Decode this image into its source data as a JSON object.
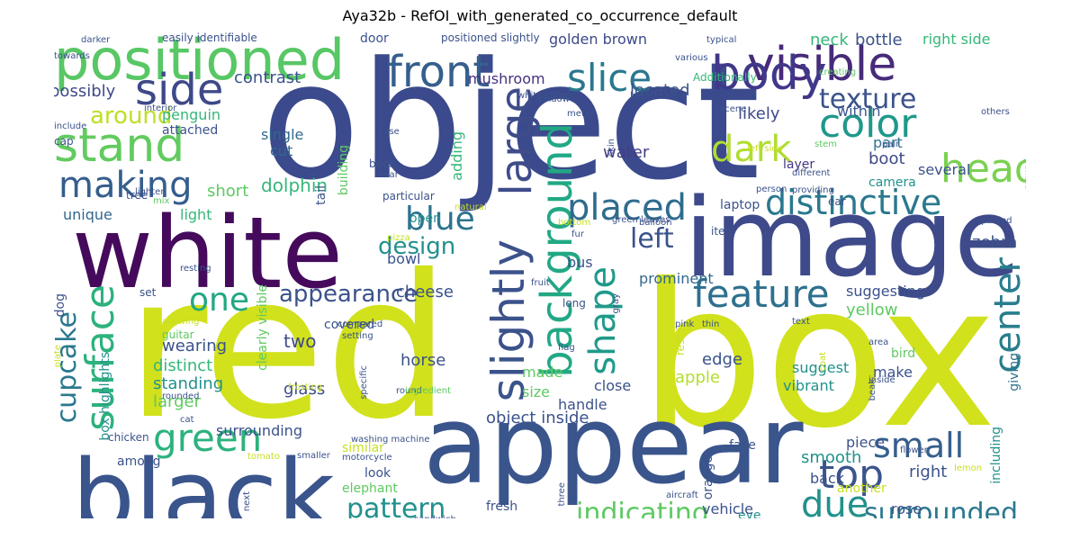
{
  "title": "Aya32b - RefOI_with_generated_co_occurrence_default",
  "words": [
    {
      "text": "object",
      "color": "#3b4a8c"
    },
    {
      "text": "red",
      "color": "#d1e11c"
    },
    {
      "text": "box",
      "color": "#d1e11c"
    },
    {
      "text": "white",
      "color": "#450a5c"
    },
    {
      "text": "image",
      "color": "#3e4a89"
    },
    {
      "text": "appear",
      "color": "#3a558c"
    },
    {
      "text": "black",
      "color": "#3a558c"
    },
    {
      "text": "positioned",
      "color": "#58c765"
    },
    {
      "text": "visible",
      "color": "#472b7a"
    },
    {
      "text": "body",
      "color": "#40388a"
    },
    {
      "text": "front",
      "color": "#355f8d"
    },
    {
      "text": "slice",
      "color": "#2a788e"
    },
    {
      "text": "stand",
      "color": "#62cb5f"
    },
    {
      "text": "side",
      "color": "#3e4989"
    },
    {
      "text": "making",
      "color": "#355e8d"
    },
    {
      "text": "color",
      "color": "#1f988b"
    },
    {
      "text": "head",
      "color": "#7ad151"
    },
    {
      "text": "texture",
      "color": "#3b528b"
    },
    {
      "text": "dark",
      "color": "#b0dd2f"
    },
    {
      "text": "distinctive",
      "color": "#2a788e"
    },
    {
      "text": "background",
      "color": "#22a884"
    },
    {
      "text": "large",
      "color": "#3e4c8a"
    },
    {
      "text": "placed",
      "color": "#2f6c8e"
    },
    {
      "text": "blue",
      "color": "#2c738e"
    },
    {
      "text": "shape",
      "color": "#1f9a8a"
    },
    {
      "text": "slightly",
      "color": "#3b528b"
    },
    {
      "text": "feature",
      "color": "#2d708e"
    },
    {
      "text": "center",
      "color": "#287d8e"
    },
    {
      "text": "surface",
      "color": "#2db27d"
    },
    {
      "text": "one",
      "color": "#22a884"
    },
    {
      "text": "appearance",
      "color": "#3b528b"
    },
    {
      "text": "design",
      "color": "#21908d"
    },
    {
      "text": "left",
      "color": "#3b528b"
    },
    {
      "text": "green",
      "color": "#2db27d"
    },
    {
      "text": "small",
      "color": "#355f8d"
    },
    {
      "text": "top",
      "color": "#3a548c"
    },
    {
      "text": "due",
      "color": "#21918c"
    },
    {
      "text": "pattern",
      "color": "#21918c"
    },
    {
      "text": "indicating",
      "color": "#5ec962"
    },
    {
      "text": "surrounded",
      "color": "#2a788e"
    },
    {
      "text": "cupcake",
      "color": "#2a788e"
    },
    {
      "text": "around",
      "color": "#bddf26"
    },
    {
      "text": "possibly",
      "color": "#3e4a89"
    },
    {
      "text": "contrast",
      "color": "#3b528b"
    },
    {
      "text": "mushroom",
      "color": "#46327e"
    },
    {
      "text": "located",
      "color": "#3b528b"
    },
    {
      "text": "golden brown",
      "color": "#3e4989"
    },
    {
      "text": "neck",
      "color": "#35b779"
    },
    {
      "text": "bottle",
      "color": "#3b528b"
    },
    {
      "text": "right side",
      "color": "#35b779"
    },
    {
      "text": "penguin",
      "color": "#35b779"
    },
    {
      "text": "likely",
      "color": "#3e4a89"
    },
    {
      "text": "within",
      "color": "#39568c"
    },
    {
      "text": "water",
      "color": "#433e85"
    },
    {
      "text": "boot",
      "color": "#3e4a89"
    },
    {
      "text": "part",
      "color": "#2c738e"
    },
    {
      "text": "layer",
      "color": "#443983"
    },
    {
      "text": "camera",
      "color": "#21918c"
    },
    {
      "text": "several",
      "color": "#3b528b"
    },
    {
      "text": "dolphin",
      "color": "#35b779"
    },
    {
      "text": "short",
      "color": "#5ec962"
    },
    {
      "text": "unique",
      "color": "#31688e"
    },
    {
      "text": "light",
      "color": "#35b779"
    },
    {
      "text": "single",
      "color": "#31688e"
    },
    {
      "text": "cut",
      "color": "#31688e"
    },
    {
      "text": "attached",
      "color": "#3b528b"
    },
    {
      "text": "horse",
      "color": "#3b528b"
    },
    {
      "text": "wearing",
      "color": "#3b528b"
    },
    {
      "text": "distinct",
      "color": "#35b779"
    },
    {
      "text": "standing",
      "color": "#21918c"
    },
    {
      "text": "larger",
      "color": "#5ec962"
    },
    {
      "text": "two",
      "color": "#3e4a89"
    },
    {
      "text": "glass",
      "color": "#3e4a89"
    },
    {
      "text": "cheese",
      "color": "#3b528b"
    },
    {
      "text": "bowl",
      "color": "#3b528b"
    },
    {
      "text": "bus",
      "color": "#3b528b"
    },
    {
      "text": "prominent",
      "color": "#31688e"
    },
    {
      "text": "suggesting",
      "color": "#3b528b"
    },
    {
      "text": "yellow",
      "color": "#5ec962"
    },
    {
      "text": "zebra",
      "color": "#3b528b"
    },
    {
      "text": "giving",
      "color": "#2c738e"
    },
    {
      "text": "bird",
      "color": "#5ec962"
    },
    {
      "text": "suggest",
      "color": "#21918c"
    },
    {
      "text": "vibrant",
      "color": "#21918c"
    },
    {
      "text": "edge",
      "color": "#3b528b"
    },
    {
      "text": "make",
      "color": "#3b528b"
    },
    {
      "text": "apple",
      "color": "#b5de2b"
    },
    {
      "text": "made",
      "color": "#5ec962"
    },
    {
      "text": "size",
      "color": "#5ec962"
    },
    {
      "text": "handle",
      "color": "#3b528b"
    },
    {
      "text": "close",
      "color": "#3b528b"
    },
    {
      "text": "object inside",
      "color": "#3b528b"
    },
    {
      "text": "surrounding",
      "color": "#3b528b"
    },
    {
      "text": "similar",
      "color": "#c8e020"
    },
    {
      "text": "piece",
      "color": "#3b528b"
    },
    {
      "text": "smooth",
      "color": "#21918c"
    },
    {
      "text": "back",
      "color": "#3b528b"
    },
    {
      "text": "right",
      "color": "#3b528b"
    },
    {
      "text": "including",
      "color": "#21918c"
    },
    {
      "text": "orange",
      "color": "#3b528b"
    },
    {
      "text": "face",
      "color": "#3b528b"
    },
    {
      "text": "eye",
      "color": "#21918c"
    },
    {
      "text": "fresh",
      "color": "#3b528b"
    },
    {
      "text": "elephant",
      "color": "#5ec962"
    },
    {
      "text": "look",
      "color": "#3b528b"
    },
    {
      "text": "another",
      "color": "#c8e020"
    },
    {
      "text": "rose",
      "color": "#3b528b"
    },
    {
      "text": "structure",
      "color": "#21918c"
    },
    {
      "text": "vehicle",
      "color": "#3b528b"
    },
    {
      "text": "among",
      "color": "#3b528b"
    },
    {
      "text": "box highlights",
      "color": "#21918c"
    },
    {
      "text": "building",
      "color": "#5ec962"
    },
    {
      "text": "adding",
      "color": "#35b779"
    },
    {
      "text": "tail",
      "color": "#3b528b"
    },
    {
      "text": "open",
      "color": "#21918c"
    },
    {
      "text": "dog",
      "color": "#3b528b"
    },
    {
      "text": "clearly visible",
      "color": "#5ec962"
    },
    {
      "text": "door",
      "color": "#3b528b"
    },
    {
      "text": "positioned slightly",
      "color": "#3b528b"
    },
    {
      "text": "easily identifiable",
      "color": "#3b528b"
    },
    {
      "text": "darker",
      "color": "#3b528b"
    },
    {
      "text": "towards",
      "color": "#3b528b"
    },
    {
      "text": "typical",
      "color": "#3b528b"
    },
    {
      "text": "various",
      "color": "#3b528b"
    },
    {
      "text": "creating",
      "color": "#5ec962"
    },
    {
      "text": "Additionally",
      "color": "#35b779"
    },
    {
      "text": "leg",
      "color": "#3b528b"
    },
    {
      "text": "window",
      "color": "#3b528b"
    },
    {
      "text": "white stripe",
      "color": "#3b528b"
    },
    {
      "text": "metal",
      "color": "#3b528b"
    },
    {
      "text": "scene",
      "color": "#3b528b"
    },
    {
      "text": "others",
      "color": "#3b528b"
    },
    {
      "text": "interior",
      "color": "#3b528b"
    },
    {
      "text": "include",
      "color": "#3b528b"
    },
    {
      "text": "cap",
      "color": "#3b528b"
    },
    {
      "text": "base",
      "color": "#3b528b"
    },
    {
      "text": "skin",
      "color": "#3b528b"
    },
    {
      "text": "left side",
      "color": "#c8e020"
    },
    {
      "text": "stem",
      "color": "#5ec962"
    },
    {
      "text": "pair",
      "color": "#3b528b"
    },
    {
      "text": "different",
      "color": "#3b528b"
    },
    {
      "text": "ear",
      "color": "#3b528b"
    },
    {
      "text": "providing",
      "color": "#3b528b"
    },
    {
      "text": "ground",
      "color": "#5ec962"
    },
    {
      "text": "overall",
      "color": "#3b528b"
    },
    {
      "text": "tree",
      "color": "#3b528b"
    },
    {
      "text": "lighter",
      "color": "#3b528b"
    },
    {
      "text": "mix",
      "color": "#5ec962"
    },
    {
      "text": "book",
      "color": "#3b528b"
    },
    {
      "text": "near",
      "color": "#3b528b"
    },
    {
      "text": "particular",
      "color": "#3b528b"
    },
    {
      "text": "person",
      "color": "#3b528b"
    },
    {
      "text": "laptop",
      "color": "#3b528b"
    },
    {
      "text": "natural",
      "color": "#c8e020"
    },
    {
      "text": "bottom",
      "color": "#c8e020"
    },
    {
      "text": "green leaves",
      "color": "#3b528b"
    },
    {
      "text": "balloon",
      "color": "#3b528b"
    },
    {
      "text": "fur",
      "color": "#3b528b"
    },
    {
      "text": "item",
      "color": "#3b528b"
    },
    {
      "text": "parked",
      "color": "#3b528b"
    },
    {
      "text": "pizza",
      "color": "#c8e020"
    },
    {
      "text": "set",
      "color": "#3b528b"
    },
    {
      "text": "resting",
      "color": "#3b528b"
    },
    {
      "text": "fruit",
      "color": "#3b528b"
    },
    {
      "text": "gray",
      "color": "#3b528b"
    },
    {
      "text": "pink",
      "color": "#3b528b"
    },
    {
      "text": "long",
      "color": "#3b528b"
    },
    {
      "text": "covered",
      "color": "#3b528b"
    },
    {
      "text": "setting",
      "color": "#3b528b"
    },
    {
      "text": "allowing",
      "color": "#c8e020"
    },
    {
      "text": "compared",
      "color": "#3b528b"
    },
    {
      "text": "thin",
      "color": "#3b528b"
    },
    {
      "text": "coat",
      "color": "#c8e020"
    },
    {
      "text": "text",
      "color": "#3b528b"
    },
    {
      "text": "area",
      "color": "#3b528b"
    },
    {
      "text": "guitar",
      "color": "#5ec962"
    },
    {
      "text": "plate",
      "color": "#c8e020"
    },
    {
      "text": "flag",
      "color": "#3b528b"
    },
    {
      "text": "rest",
      "color": "#c8e020"
    },
    {
      "text": "frosting",
      "color": "#c8e020"
    },
    {
      "text": "round",
      "color": "#3b528b"
    },
    {
      "text": "ingredient",
      "color": "#5ec962"
    },
    {
      "text": "specific",
      "color": "#3b528b"
    },
    {
      "text": "inside",
      "color": "#3b528b"
    },
    {
      "text": "beak",
      "color": "#3b528b"
    },
    {
      "text": "rounded",
      "color": "#3b528b"
    },
    {
      "text": "cat",
      "color": "#3b528b"
    },
    {
      "text": "chicken",
      "color": "#3b528b"
    },
    {
      "text": "washing machine",
      "color": "#3b528b"
    },
    {
      "text": "tomato",
      "color": "#c8e020"
    },
    {
      "text": "smaller",
      "color": "#3b528b"
    },
    {
      "text": "motorcycle",
      "color": "#3b528b"
    },
    {
      "text": "three",
      "color": "#3b528b"
    },
    {
      "text": "flower",
      "color": "#3b528b"
    },
    {
      "text": "lemon",
      "color": "#c8e020"
    },
    {
      "text": "blade",
      "color": "#3b528b"
    },
    {
      "text": "entire",
      "color": "#3b528b"
    },
    {
      "text": "next",
      "color": "#3b528b"
    },
    {
      "text": "aircraft",
      "color": "#3b528b"
    },
    {
      "text": "sandwich",
      "color": "#3b528b"
    }
  ]
}
